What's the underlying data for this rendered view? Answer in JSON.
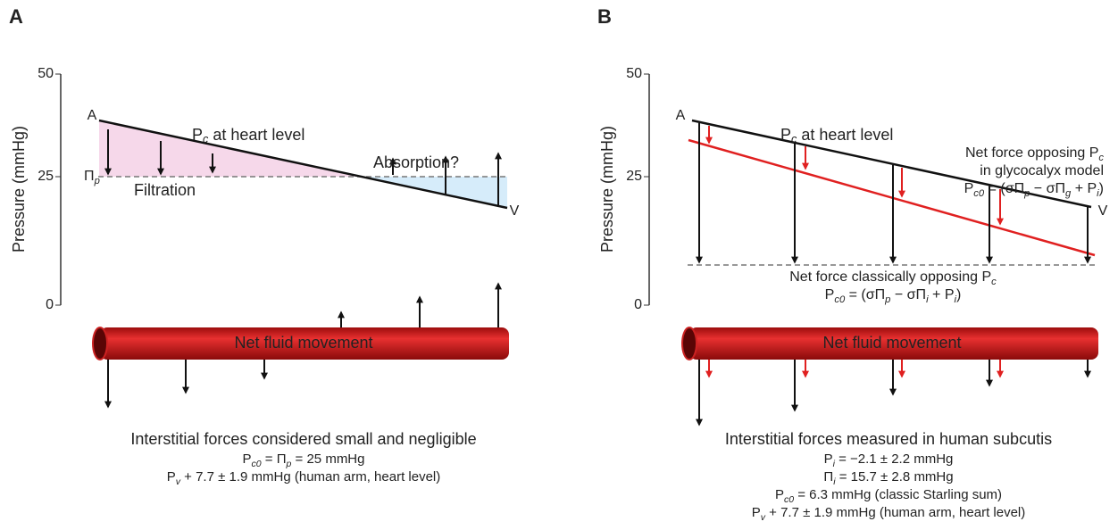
{
  "panel_a": {
    "label": "A",
    "y_axis_label": "Pressure (mmHg)",
    "yticks": [
      50,
      25,
      0
    ],
    "point_a": "A",
    "point_v": "V",
    "pc_label": [
      "P",
      "c",
      " at heart level"
    ],
    "pi_p": [
      "Π",
      "p"
    ],
    "filtration": "Filtration",
    "absorption": "Absorption?",
    "vessel_label": "Net fluid movement",
    "caption": [
      "Interstitial forces considered small and negligible",
      [
        "P",
        "c0",
        " = Π",
        "p",
        " = 25 mmHg"
      ],
      [
        "P",
        "v",
        " + 7.7 ± 1.9 mmHg (human arm, heart level)"
      ]
    ]
  },
  "panel_b": {
    "label": "B",
    "y_axis_label": "Pressure (mmHg)",
    "yticks": [
      50,
      25,
      0
    ],
    "point_a": "A",
    "point_v": "V",
    "pc_label": [
      "P",
      "c",
      " at heart level"
    ],
    "glycocalyx": [
      [
        "Net force opposing P",
        "c"
      ],
      "in glycocalyx model",
      [
        "P",
        "c0",
        " = (σΠ",
        "p",
        " − σΠ",
        "g",
        " + P",
        "i",
        ")"
      ]
    ],
    "classic": [
      [
        "Net force classically opposing P",
        "c"
      ],
      [
        "P",
        "c0",
        " = (σΠ",
        "p",
        " − σΠ",
        "i",
        " + P",
        "i",
        ")"
      ]
    ],
    "vessel_label": "Net fluid movement",
    "caption": [
      "Interstitial forces measured in human subcutis",
      [
        "P",
        "i",
        " = −2.1 ± 2.2 mmHg"
      ],
      [
        "Π",
        "i",
        " = 15.7 ± 2.8 mmHg"
      ],
      [
        "P",
        "c0",
        " = 6.3 mmHg (classic Starling sum)"
      ],
      [
        "P",
        "v",
        " + 7.7 ± 1.9 mmHg (human arm, heart level)"
      ]
    ]
  }
}
